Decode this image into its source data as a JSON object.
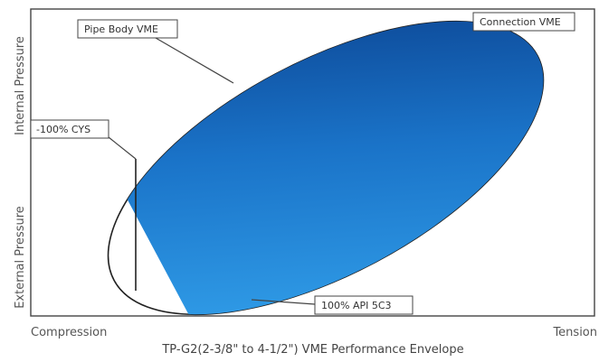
{
  "diagram": {
    "caption": "TP-G2(2-3/8\" to 4-1/2\") VME Performance Envelope",
    "axes": {
      "x_left": "Compression",
      "x_right": "Tension",
      "y_top": "Internal Pressure",
      "y_bottom": "External Pressure"
    },
    "callouts": {
      "pipe_body": "Pipe Body VME",
      "connection": "Connection VME",
      "cys": "-100% CYS",
      "api": "100% API 5C3"
    },
    "colors": {
      "envelope_light": "#2b9be6",
      "envelope_dark": "#0b4a98",
      "frame": "#444444",
      "ellipse_stroke": "#222222"
    }
  }
}
